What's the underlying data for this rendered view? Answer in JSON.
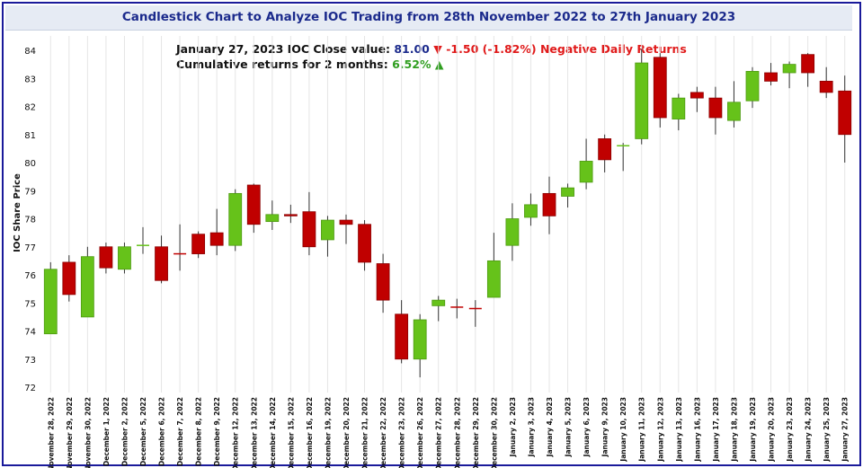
{
  "header": {
    "title": "Candlestick Chart to Analyze IOC Trading from 28th November 2022 to 27th January 2023"
  },
  "info": {
    "date_label": "January 27, 2023 IOC Close value:",
    "close_value": "81.00",
    "change_arrow": "▼",
    "change_text": "-1.50 (-1.82%) Negative Daily Returns",
    "cumulative_label": "Cumulative returns for 2 months:",
    "cumulative_value": "6.52%",
    "cumulative_arrow": "▲"
  },
  "colors": {
    "up": "#66c21a",
    "down": "#c00000",
    "wick": "#333333",
    "border": "#1a1a9a",
    "grid": "#e5e5e5"
  },
  "chart_data": {
    "type": "candlestick",
    "ylabel": "IOC Share Price",
    "ylim": [
      72,
      84
    ],
    "yticks": [
      72,
      73,
      74,
      75,
      76,
      77,
      78,
      79,
      80,
      81,
      82,
      83,
      84
    ],
    "grid": "vertical",
    "candles": [
      {
        "date": "November 28, 2022",
        "open": 73.9,
        "close": 76.2,
        "high": 76.45,
        "low": 73.9
      },
      {
        "date": "November 29, 2022",
        "open": 76.45,
        "close": 75.3,
        "high": 76.7,
        "low": 75.05
      },
      {
        "date": "November 30, 2022",
        "open": 74.5,
        "close": 76.65,
        "high": 77.0,
        "low": 74.5
      },
      {
        "date": "December 1, 2022",
        "open": 77.0,
        "close": 76.25,
        "high": 77.15,
        "low": 76.05
      },
      {
        "date": "December 2, 2022",
        "open": 76.2,
        "close": 77.0,
        "high": 77.15,
        "low": 76.05
      },
      {
        "date": "December 5, 2022",
        "open": 77.05,
        "close": 77.05,
        "high": 77.7,
        "low": 76.75
      },
      {
        "date": "December 6, 2022",
        "open": 77.0,
        "close": 75.8,
        "high": 77.4,
        "low": 75.7
      },
      {
        "date": "December 7, 2022",
        "open": 76.75,
        "close": 76.75,
        "high": 77.8,
        "low": 76.15
      },
      {
        "date": "December 8, 2022",
        "open": 77.45,
        "close": 76.75,
        "high": 77.55,
        "low": 76.6
      },
      {
        "date": "December 9, 2022",
        "open": 77.5,
        "close": 77.05,
        "high": 78.35,
        "low": 76.7
      },
      {
        "date": "December 12, 2022",
        "open": 77.05,
        "close": 78.9,
        "high": 79.05,
        "low": 76.85
      },
      {
        "date": "December 13, 2022",
        "open": 79.2,
        "close": 77.8,
        "high": 79.25,
        "low": 77.5
      },
      {
        "date": "December 14, 2022",
        "open": 77.9,
        "close": 78.15,
        "high": 78.65,
        "low": 77.6
      },
      {
        "date": "December 15, 2022",
        "open": 78.15,
        "close": 78.1,
        "high": 78.5,
        "low": 77.85
      },
      {
        "date": "December 16, 2022",
        "open": 78.25,
        "close": 77.0,
        "high": 78.95,
        "low": 76.7
      },
      {
        "date": "December 19, 2022",
        "open": 77.25,
        "close": 77.95,
        "high": 78.1,
        "low": 76.65
      },
      {
        "date": "December 20, 2022",
        "open": 77.95,
        "close": 77.8,
        "high": 78.15,
        "low": 77.1
      },
      {
        "date": "December 21, 2022",
        "open": 77.8,
        "close": 76.45,
        "high": 77.95,
        "low": 76.15
      },
      {
        "date": "December 22, 2022",
        "open": 76.4,
        "close": 75.1,
        "high": 76.75,
        "low": 74.65
      },
      {
        "date": "December 23, 2022",
        "open": 74.6,
        "close": 73.0,
        "high": 75.1,
        "low": 72.85
      },
      {
        "date": "December 26, 2022",
        "open": 73.0,
        "close": 74.4,
        "high": 74.6,
        "low": 72.35
      },
      {
        "date": "December 27, 2022",
        "open": 74.9,
        "close": 75.1,
        "high": 75.25,
        "low": 74.35
      },
      {
        "date": "December 28, 2022",
        "open": 74.85,
        "close": 74.85,
        "high": 75.15,
        "low": 74.45
      },
      {
        "date": "December 29, 2022",
        "open": 74.8,
        "close": 74.8,
        "high": 75.1,
        "low": 74.15
      },
      {
        "date": "December 30, 2022",
        "open": 75.2,
        "close": 76.5,
        "high": 77.5,
        "low": 75.2
      },
      {
        "date": "January 2, 2023",
        "open": 77.05,
        "close": 78.0,
        "high": 78.55,
        "low": 76.5
      },
      {
        "date": "January 3, 2023",
        "open": 78.05,
        "close": 78.5,
        "high": 78.9,
        "low": 77.75
      },
      {
        "date": "January 4, 2023",
        "open": 78.9,
        "close": 78.1,
        "high": 79.5,
        "low": 77.45
      },
      {
        "date": "January 5, 2023",
        "open": 78.8,
        "close": 79.1,
        "high": 79.25,
        "low": 78.4
      },
      {
        "date": "January 6, 2023",
        "open": 79.3,
        "close": 80.05,
        "high": 80.85,
        "low": 79.05
      },
      {
        "date": "January 9, 2023",
        "open": 80.85,
        "close": 80.1,
        "high": 81.0,
        "low": 79.65
      },
      {
        "date": "January 10, 2023",
        "open": 80.6,
        "close": 80.6,
        "high": 80.7,
        "low": 79.7
      },
      {
        "date": "January 11, 2023",
        "open": 80.85,
        "close": 83.55,
        "high": 84.05,
        "low": 80.65
      },
      {
        "date": "January 12, 2023",
        "open": 83.75,
        "close": 81.6,
        "high": 83.9,
        "low": 81.25
      },
      {
        "date": "January 13, 2023",
        "open": 81.55,
        "close": 82.3,
        "high": 82.45,
        "low": 81.15
      },
      {
        "date": "January 16, 2023",
        "open": 82.5,
        "close": 82.3,
        "high": 82.7,
        "low": 81.8
      },
      {
        "date": "January 17, 2023",
        "open": 82.3,
        "close": 81.6,
        "high": 82.7,
        "low": 81.0
      },
      {
        "date": "January 18, 2023",
        "open": 81.5,
        "close": 82.15,
        "high": 82.9,
        "low": 81.25
      },
      {
        "date": "January 19, 2023",
        "open": 82.2,
        "close": 83.25,
        "high": 83.4,
        "low": 81.95
      },
      {
        "date": "January 20, 2023",
        "open": 83.2,
        "close": 82.9,
        "high": 83.55,
        "low": 82.75
      },
      {
        "date": "January 23, 2023",
        "open": 83.2,
        "close": 83.5,
        "high": 83.6,
        "low": 82.65
      },
      {
        "date": "January 24, 2023",
        "open": 83.85,
        "close": 83.2,
        "high": 83.9,
        "low": 82.7
      },
      {
        "date": "January 25, 2023",
        "open": 82.9,
        "close": 82.5,
        "high": 83.4,
        "low": 82.3
      },
      {
        "date": "January 27, 2023",
        "open": 82.55,
        "close": 81.0,
        "high": 83.1,
        "low": 80.0
      }
    ]
  }
}
